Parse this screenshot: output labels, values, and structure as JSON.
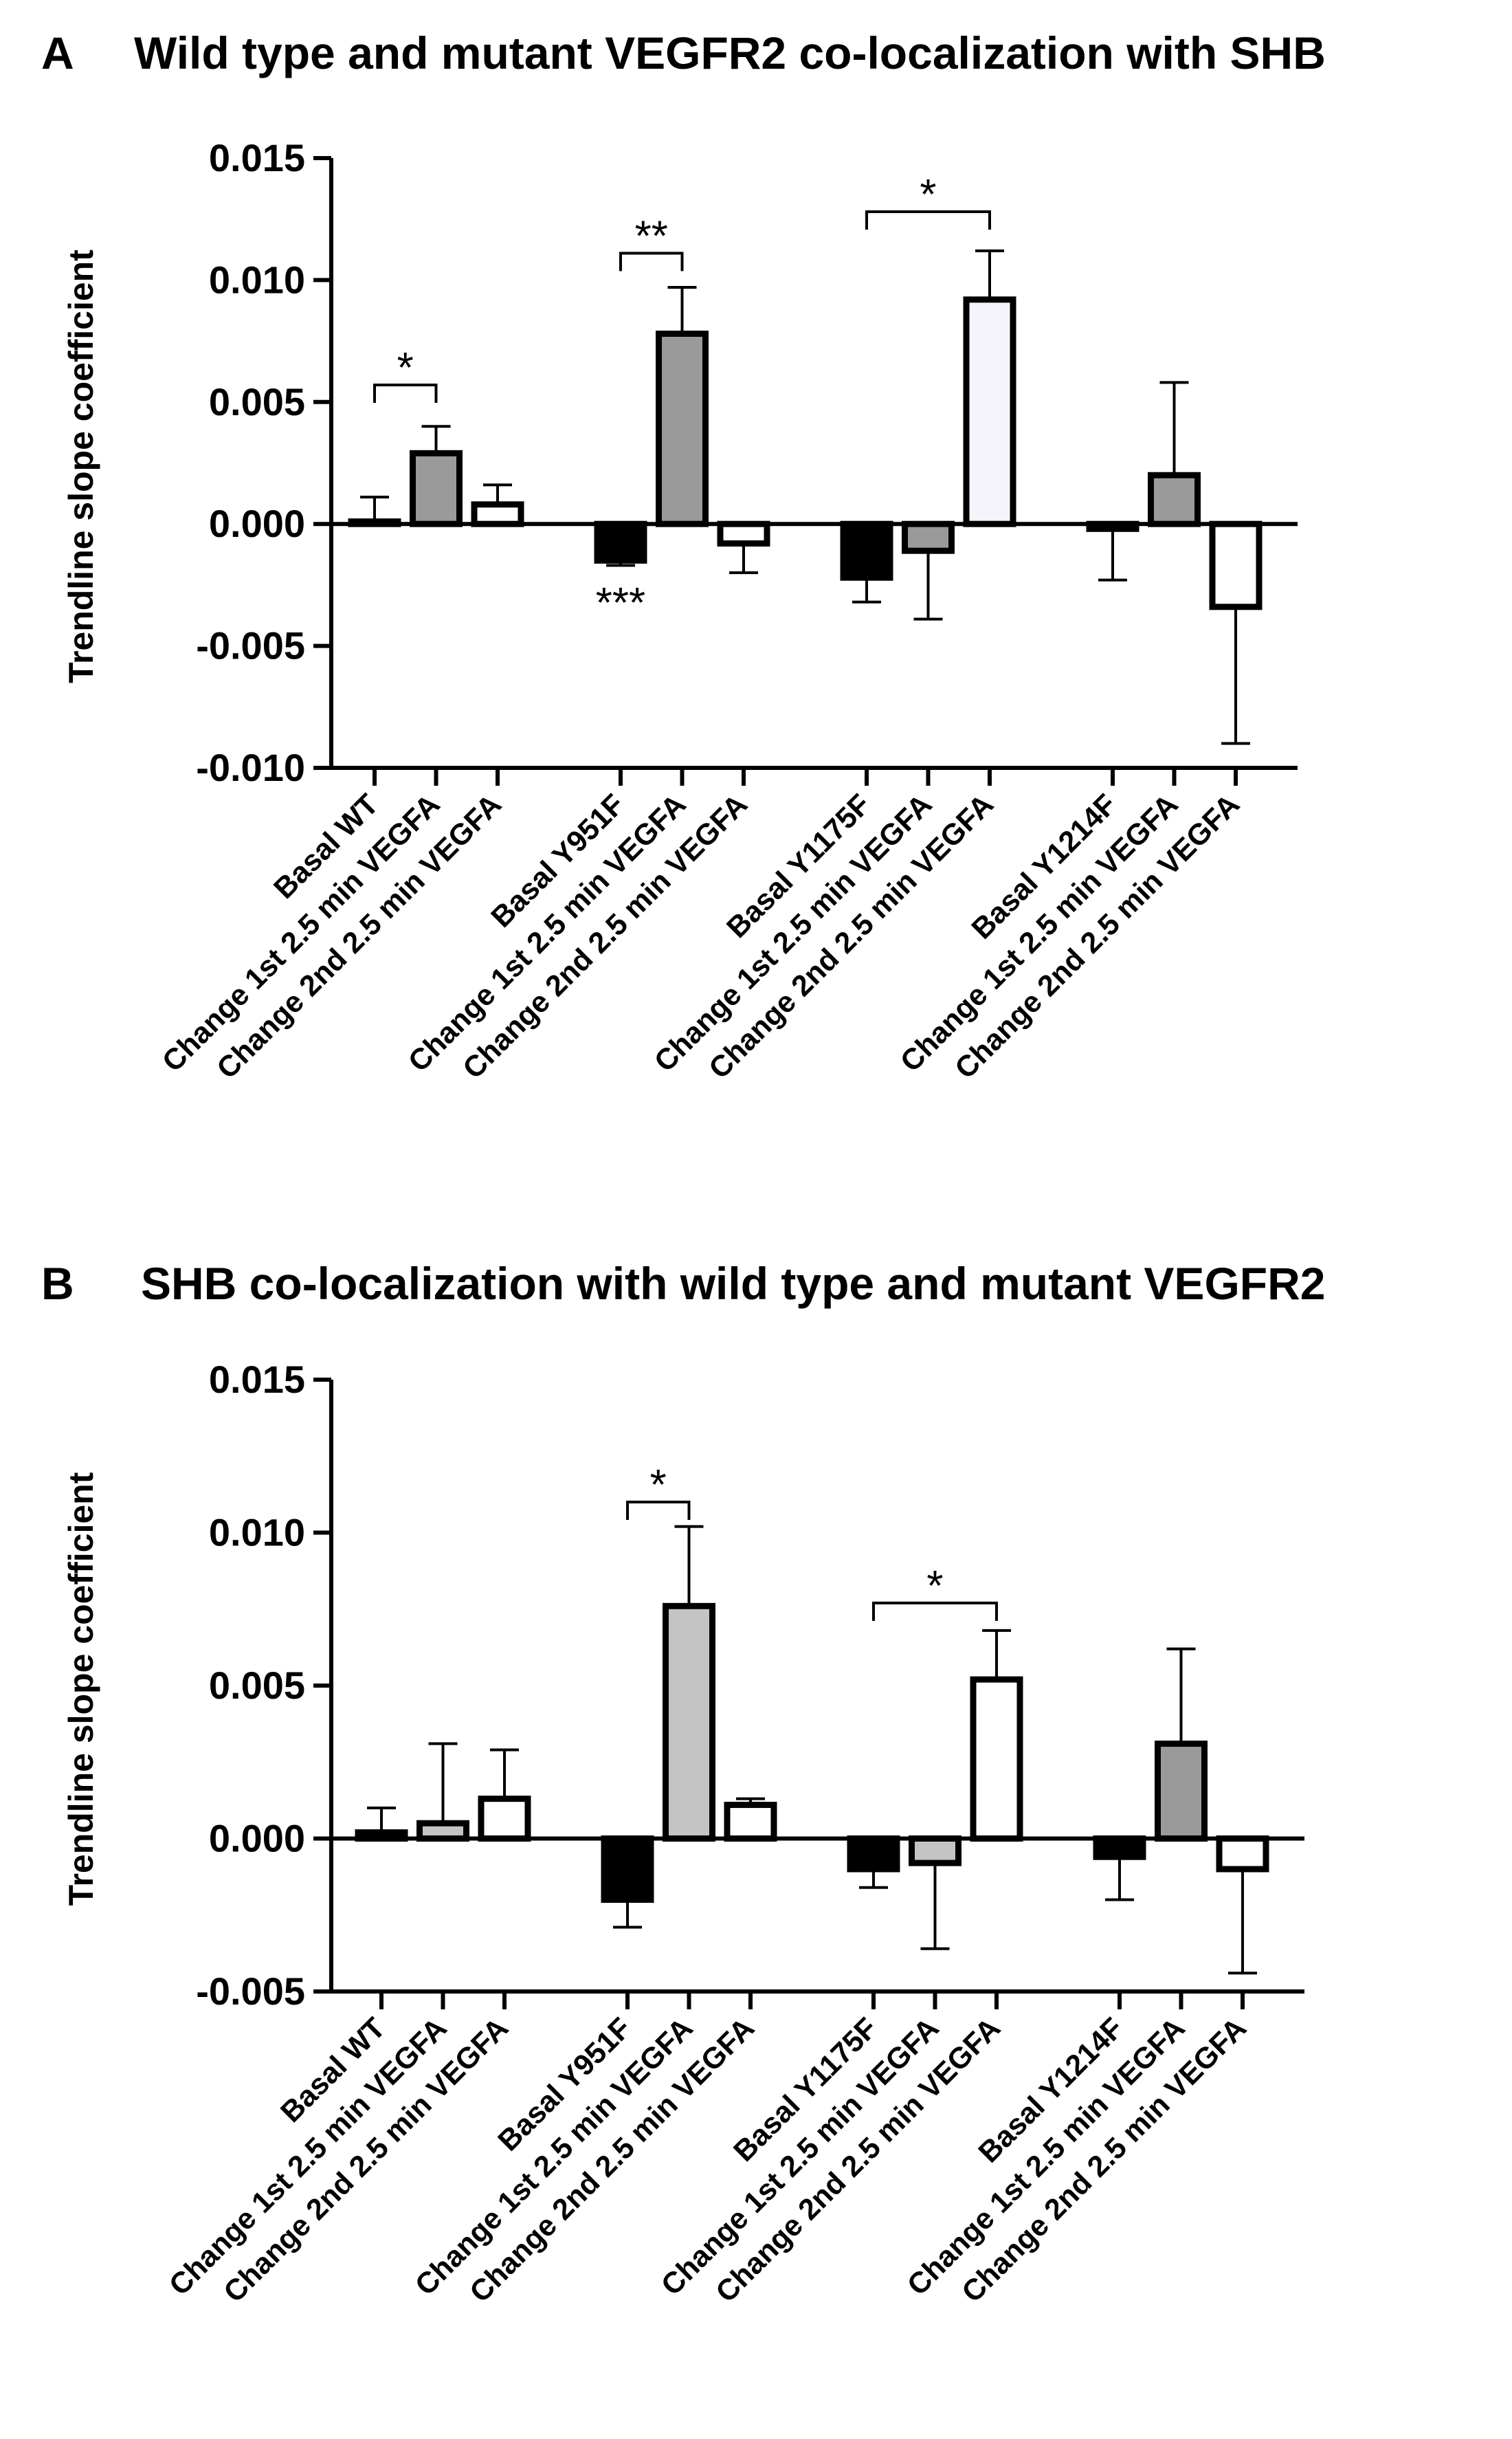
{
  "figure": {
    "panels": [
      {
        "letter": "A",
        "title": "Wild type and mutant VEGFR2 co-localization with SHB"
      },
      {
        "letter": "B",
        "title": "SHB co-localization with wild type and mutant VEGFR2"
      }
    ]
  },
  "colors": {
    "black": "#000000",
    "dark_gray": "#9a9a9a",
    "light_gray": "#c4c4c4",
    "white": "#ffffff",
    "near_white": "#f5f4fc"
  },
  "chart_data": [
    {
      "type": "bar",
      "panel": "A",
      "title": "Wild type and mutant VEGFR2 co-localization with SHB",
      "ylabel": "Trendline slope coefficient",
      "xlabel": "",
      "ylim": [
        -0.01,
        0.015
      ],
      "yticks": [
        "0.015",
        "0.010",
        "0.005",
        "0.000",
        "-0.005",
        "-0.010"
      ],
      "ytick_values": [
        0.015,
        0.01,
        0.005,
        0.0,
        -0.005,
        -0.01
      ],
      "grid": false,
      "categories": [
        "Basal WT",
        "Change 1st 2.5 min VEGFA",
        "Change 2nd 2.5 min VEGFA",
        "Basal Y951F",
        "Change 1st 2.5 min VEGFA",
        "Change 2nd 2.5 min VEGFA",
        "Basal Y1175F",
        "Change 1st 2.5 min VEGFA",
        "Change 2nd 2.5 min VEGFA",
        "Basal Y1214F",
        "Change 1st 2.5 min VEGFA",
        "Change 2nd 2.5 min VEGFA"
      ],
      "values": [
        0.0001,
        0.0029,
        0.0008,
        -0.0015,
        0.0078,
        -0.0008,
        -0.0022,
        -0.0011,
        0.0092,
        -0.0002,
        0.002,
        -0.0034
      ],
      "errors": [
        0.001,
        0.0011,
        0.0008,
        0.0002,
        0.0019,
        0.0012,
        0.001,
        0.0028,
        0.002,
        0.0021,
        0.0038,
        0.0056
      ],
      "fills": [
        "white",
        "dark_gray",
        "white",
        "black",
        "dark_gray",
        "white",
        "black",
        "dark_gray",
        "near_white",
        "black",
        "dark_gray",
        "white"
      ],
      "annotations": [
        {
          "label": "*",
          "type": "bracket",
          "from": 0,
          "to": 1,
          "y": 0.0057
        },
        {
          "label": "**",
          "type": "bracket",
          "from": 3,
          "to": 4,
          "y": 0.0111
        },
        {
          "label": "*",
          "type": "bracket",
          "from": 6,
          "to": 8,
          "y": 0.0128
        },
        {
          "label": "***",
          "type": "text",
          "at": 3,
          "y": -0.0027
        }
      ]
    },
    {
      "type": "bar",
      "panel": "B",
      "title": "SHB co-localization with wild type and mutant VEGFR2",
      "ylabel": "Trendline slope coefficient",
      "xlabel": "",
      "ylim": [
        -0.005,
        0.015
      ],
      "yticks": [
        "0.015",
        "0.010",
        "0.005",
        "0.000",
        "-0.005"
      ],
      "ytick_values": [
        0.015,
        0.01,
        0.005,
        0.0,
        -0.005
      ],
      "grid": false,
      "categories": [
        "Basal WT",
        "Change 1st 2.5 min VEGFA",
        "Change 2nd 2.5 min VEGFA",
        "Basal Y951F",
        "Change 1st 2.5 min VEGFA",
        "Change 2nd 2.5 min VEGFA",
        "Basal Y1175F",
        "Change 1st 2.5 min VEGFA",
        "Change 2nd 2.5 min VEGFA",
        "Basal Y1214F",
        "Change 1st 2.5 min VEGFA",
        "Change 2nd 2.5 min VEGFA"
      ],
      "values": [
        0.0002,
        0.0005,
        0.0013,
        -0.002,
        0.0076,
        0.0011,
        -0.001,
        -0.0008,
        0.0052,
        -0.0006,
        0.0031,
        -0.001
      ],
      "errors": [
        0.0008,
        0.0026,
        0.0016,
        0.0009,
        0.0026,
        0.0002,
        0.0006,
        0.0028,
        0.0016,
        0.0014,
        0.0031,
        0.0034
      ],
      "fills": [
        "white",
        "light_gray",
        "white",
        "black",
        "light_gray",
        "white",
        "black",
        "light_gray",
        "white",
        "black",
        "dark_gray",
        "white"
      ],
      "annotations": [
        {
          "label": "*",
          "type": "bracket",
          "from": 3,
          "to": 4,
          "y": 0.011
        },
        {
          "label": "*",
          "type": "bracket",
          "from": 6,
          "to": 8,
          "y": 0.0077
        }
      ]
    }
  ]
}
